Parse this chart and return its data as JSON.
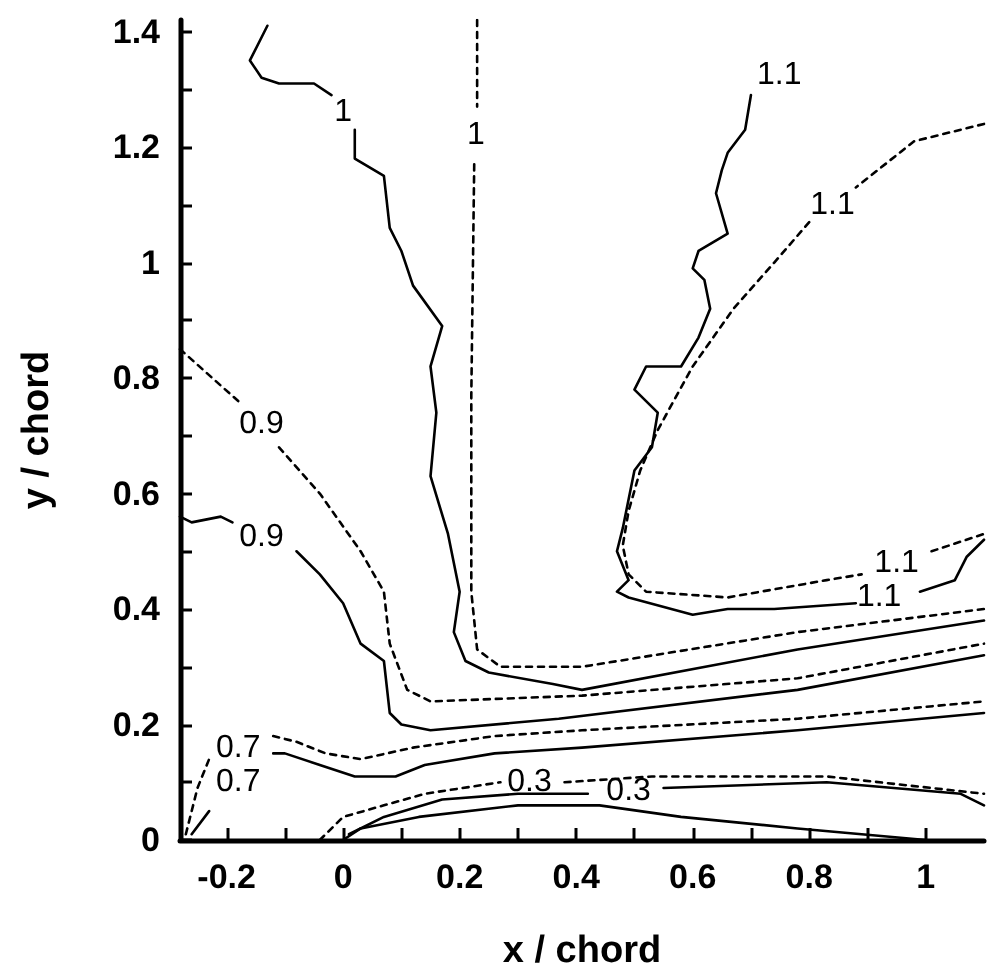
{
  "chart_data": {
    "type": "line",
    "xlabel": "x / chord",
    "ylabel": "y / chord",
    "xlim": [
      -0.28,
      1.1
    ],
    "ylim": [
      0,
      1.42
    ],
    "xticks": [
      -0.2,
      {
        "value": -0.1,
        "label": null
      },
      0,
      {
        "value": 0.1,
        "label": null
      },
      0.2,
      {
        "value": 0.3,
        "label": null
      },
      0.4,
      {
        "value": 0.5,
        "label": null
      },
      0.6,
      {
        "value": 0.7,
        "label": null
      },
      0.8,
      {
        "value": 0.9,
        "label": null
      },
      1
    ],
    "yticks": [
      0,
      {
        "value": 0.1,
        "label": null
      },
      0.2,
      {
        "value": 0.3,
        "label": null
      },
      0.4,
      {
        "value": 0.5,
        "label": null
      },
      0.6,
      {
        "value": 0.7,
        "label": null
      },
      0.8,
      {
        "value": 0.9,
        "label": null
      },
      1,
      {
        "value": 1.1,
        "label": null
      },
      1.2,
      {
        "value": 1.3,
        "label": null
      },
      1.4
    ],
    "series": [
      {
        "name": "1",
        "color": "#000000",
        "line_style": "solid",
        "x": [
          -0.13,
          -0.16,
          -0.14,
          -0.11,
          -0.05,
          -0.02,
          0.0,
          0.02,
          0.02,
          0.07,
          0.08,
          0.1,
          0.12,
          0.17,
          0.15,
          0.16,
          0.15,
          0.18,
          0.2,
          0.19,
          0.21,
          0.25,
          0.36,
          0.41,
          0.78,
          1.1
        ],
        "values": [
          1.41,
          1.35,
          1.32,
          1.31,
          1.31,
          1.29,
          null,
          1.23,
          1.18,
          1.15,
          1.06,
          1.02,
          0.96,
          0.89,
          0.82,
          0.74,
          0.63,
          0.53,
          0.43,
          0.36,
          0.31,
          0.29,
          0.27,
          0.26,
          0.33,
          0.38
        ]
      },
      {
        "name": "1",
        "color": "#000000",
        "line_style": "dashed",
        "x": [
          0.23,
          0.23,
          0.228,
          0.225,
          0.22,
          0.22,
          0.23,
          0.27,
          0.41,
          0.78,
          1.1
        ],
        "values": [
          1.42,
          1.27,
          null,
          1.17,
          0.77,
          0.43,
          0.33,
          0.3,
          0.3,
          0.36,
          0.4
        ]
      },
      {
        "name": "0.9",
        "color": "#000000",
        "line_style": "dashed",
        "x": [
          -0.28,
          -0.18,
          -0.14,
          -0.11,
          -0.04,
          0.03,
          0.07,
          0.08,
          0.11,
          0.15,
          0.41,
          0.78,
          1.1
        ],
        "values": [
          0.85,
          0.76,
          null,
          0.68,
          0.6,
          0.5,
          0.43,
          0.34,
          0.26,
          0.24,
          0.25,
          0.28,
          0.34
        ]
      },
      {
        "name": "0.9",
        "color": "#000000",
        "line_style": "solid",
        "x": [
          -0.28,
          -0.26,
          -0.21,
          -0.19,
          -0.14,
          -0.08,
          -0.04,
          0.0,
          0.03,
          0.07,
          0.08,
          0.1,
          0.15,
          0.37,
          0.78,
          1.1
        ],
        "values": [
          0.56,
          0.55,
          0.56,
          0.55,
          null,
          0.5,
          0.46,
          0.41,
          0.34,
          0.31,
          0.22,
          0.2,
          0.19,
          0.21,
          0.26,
          0.32
        ]
      },
      {
        "name": "0.7",
        "color": "#000000",
        "line_style": "dashed",
        "x": [
          -0.27,
          -0.25,
          -0.23,
          -0.18,
          -0.12,
          -0.08,
          -0.03,
          0.03,
          0.12,
          0.26,
          0.41,
          0.78,
          1.1
        ],
        "values": [
          0.01,
          0.09,
          0.14,
          null,
          0.18,
          0.17,
          0.15,
          0.14,
          0.16,
          0.18,
          0.19,
          0.21,
          0.24
        ]
      },
      {
        "name": "0.7",
        "color": "#000000",
        "line_style": "solid",
        "x": [
          -0.26,
          -0.23,
          -0.18,
          -0.12,
          -0.1,
          -0.04,
          0.02,
          0.09,
          0.14,
          0.26,
          0.41,
          0.78,
          1.1
        ],
        "values": [
          0.01,
          0.05,
          null,
          0.15,
          0.15,
          0.13,
          0.11,
          0.11,
          0.13,
          0.15,
          0.16,
          0.19,
          0.22
        ]
      },
      {
        "name": "0.3",
        "color": "#000000",
        "line_style": "dashed",
        "x": [
          -0.04,
          0.0,
          0.07,
          0.14,
          0.27,
          0.32,
          0.38,
          0.53,
          0.83,
          1.1
        ],
        "values": [
          0.0,
          0.04,
          0.06,
          0.08,
          0.1,
          null,
          0.1,
          0.11,
          0.11,
          0.08
        ]
      },
      {
        "name": "0.3",
        "color": "#000000",
        "line_style": "solid",
        "x": [
          0.01,
          0.07,
          0.17,
          0.3,
          0.42,
          0.49,
          0.55,
          0.83,
          1.06,
          1.1
        ],
        "values": [
          0.01,
          0.04,
          0.07,
          0.08,
          0.08,
          null,
          0.09,
          0.1,
          0.08,
          0.06
        ]
      },
      {
        "color": "#000000",
        "line_style": "solid",
        "x": [
          0.0,
          0.03,
          0.13,
          0.3,
          0.44,
          0.58,
          0.78,
          1.0
        ],
        "values": [
          0.0,
          0.02,
          0.04,
          0.06,
          0.06,
          0.04,
          0.02,
          0.0
        ]
      },
      {
        "name": "1.1",
        "color": "#000000",
        "line_style": "solid",
        "x": [
          0.7,
          0.69,
          0.66,
          0.65,
          0.64,
          0.66,
          0.61,
          0.6,
          0.62,
          0.63,
          0.61,
          0.58,
          0.52,
          0.5,
          0.54,
          0.53,
          0.5,
          0.48,
          0.47,
          0.49,
          0.47,
          0.49,
          0.6,
          0.66,
          0.74,
          0.88,
          0.92,
          0.99,
          1.05,
          1.07,
          1.1
        ],
        "values": [
          1.29,
          1.23,
          1.19,
          1.16,
          1.12,
          1.05,
          1.02,
          0.99,
          0.97,
          0.92,
          0.87,
          0.82,
          0.82,
          0.78,
          0.74,
          0.68,
          0.64,
          0.54,
          0.5,
          0.45,
          0.43,
          0.42,
          0.39,
          0.4,
          0.4,
          0.41,
          null,
          0.43,
          0.45,
          0.49,
          0.52
        ]
      },
      {
        "name": "1.1",
        "color": "#000000",
        "line_style": "dashed",
        "x": [
          1.1,
          0.98,
          0.88,
          0.84,
          0.8,
          0.74,
          0.67,
          0.6,
          0.54,
          0.51,
          0.49,
          0.48,
          0.49,
          0.52,
          0.66,
          0.83,
          0.89,
          0.95,
          1.01,
          1.1
        ],
        "values": [
          1.24,
          1.21,
          1.13,
          null,
          1.07,
          1.0,
          0.92,
          0.82,
          0.71,
          0.64,
          0.57,
          0.51,
          0.46,
          0.43,
          0.42,
          0.45,
          0.46,
          null,
          0.5,
          0.53
        ]
      }
    ],
    "annotations": [
      {
        "text": "1.1",
        "x": 0.7,
        "y": 1.29
      }
    ]
  }
}
